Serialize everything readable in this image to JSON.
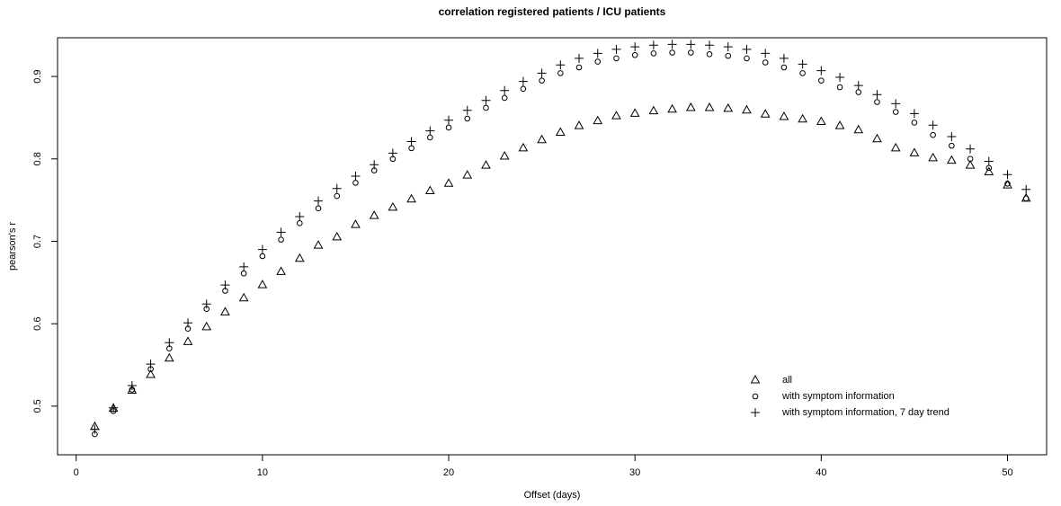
{
  "chart_data": {
    "type": "scatter",
    "title": "correlation registered patients / ICU patients",
    "x_label": "Offset (days)",
    "y_label": "pearson's r",
    "x": [
      1,
      2,
      3,
      4,
      5,
      6,
      7,
      8,
      9,
      10,
      11,
      12,
      13,
      14,
      15,
      16,
      17,
      18,
      19,
      20,
      21,
      22,
      23,
      24,
      25,
      26,
      27,
      28,
      29,
      30,
      31,
      32,
      33,
      34,
      35,
      36,
      37,
      38,
      39,
      40,
      41,
      42,
      43,
      44,
      45,
      46,
      47,
      48,
      49,
      50,
      51
    ],
    "series": [
      {
        "name": "all",
        "color": "#000000",
        "marker": "triangle",
        "values": [
          0.475,
          0.497,
          0.519,
          0.538,
          0.558,
          0.578,
          0.596,
          0.614,
          0.631,
          0.647,
          0.663,
          0.679,
          0.695,
          0.705,
          0.72,
          0.731,
          0.741,
          0.751,
          0.761,
          0.77,
          0.78,
          0.792,
          0.803,
          0.813,
          0.823,
          0.832,
          0.84,
          0.846,
          0.852,
          0.855,
          0.858,
          0.86,
          0.862,
          0.862,
          0.861,
          0.859,
          0.854,
          0.851,
          0.848,
          0.845,
          0.84,
          0.835,
          0.824,
          0.813,
          0.807,
          0.801,
          0.798,
          0.792,
          0.784,
          0.768,
          0.752
        ]
      },
      {
        "name": "with symptom information",
        "color": "#000000",
        "marker": "circle",
        "values": [
          0.466,
          0.494,
          0.52,
          0.545,
          0.57,
          0.594,
          0.618,
          0.64,
          0.661,
          0.682,
          0.702,
          0.722,
          0.74,
          0.755,
          0.771,
          0.786,
          0.8,
          0.813,
          0.826,
          0.838,
          0.849,
          0.862,
          0.874,
          0.885,
          0.895,
          0.904,
          0.911,
          0.918,
          0.922,
          0.926,
          0.928,
          0.929,
          0.929,
          0.927,
          0.925,
          0.922,
          0.917,
          0.911,
          0.904,
          0.895,
          0.887,
          0.881,
          0.869,
          0.857,
          0.844,
          0.829,
          0.816,
          0.8,
          0.789,
          0.77,
          0.752
        ]
      },
      {
        "name": "with symptom information, 7 day trend",
        "color": "#000000",
        "marker": "plus",
        "values": [
          0.472,
          0.498,
          0.525,
          0.551,
          0.577,
          0.601,
          0.624,
          0.647,
          0.669,
          0.69,
          0.711,
          0.73,
          0.749,
          0.764,
          0.779,
          0.793,
          0.807,
          0.821,
          0.834,
          0.847,
          0.859,
          0.871,
          0.883,
          0.894,
          0.904,
          0.914,
          0.922,
          0.928,
          0.933,
          0.936,
          0.938,
          0.939,
          0.939,
          0.938,
          0.936,
          0.933,
          0.928,
          0.922,
          0.915,
          0.907,
          0.899,
          0.889,
          0.878,
          0.867,
          0.855,
          0.841,
          0.827,
          0.812,
          0.797,
          0.781,
          0.763
        ]
      }
    ],
    "xlim": [
      -1.0,
      52.1
    ],
    "ylim": [
      0.441,
      0.947
    ],
    "xticks": [
      0,
      10,
      20,
      30,
      40,
      50
    ],
    "yticks": [
      0.5,
      0.6,
      0.7,
      0.8,
      0.9
    ],
    "grid": false,
    "legend": "bottom-right"
  }
}
